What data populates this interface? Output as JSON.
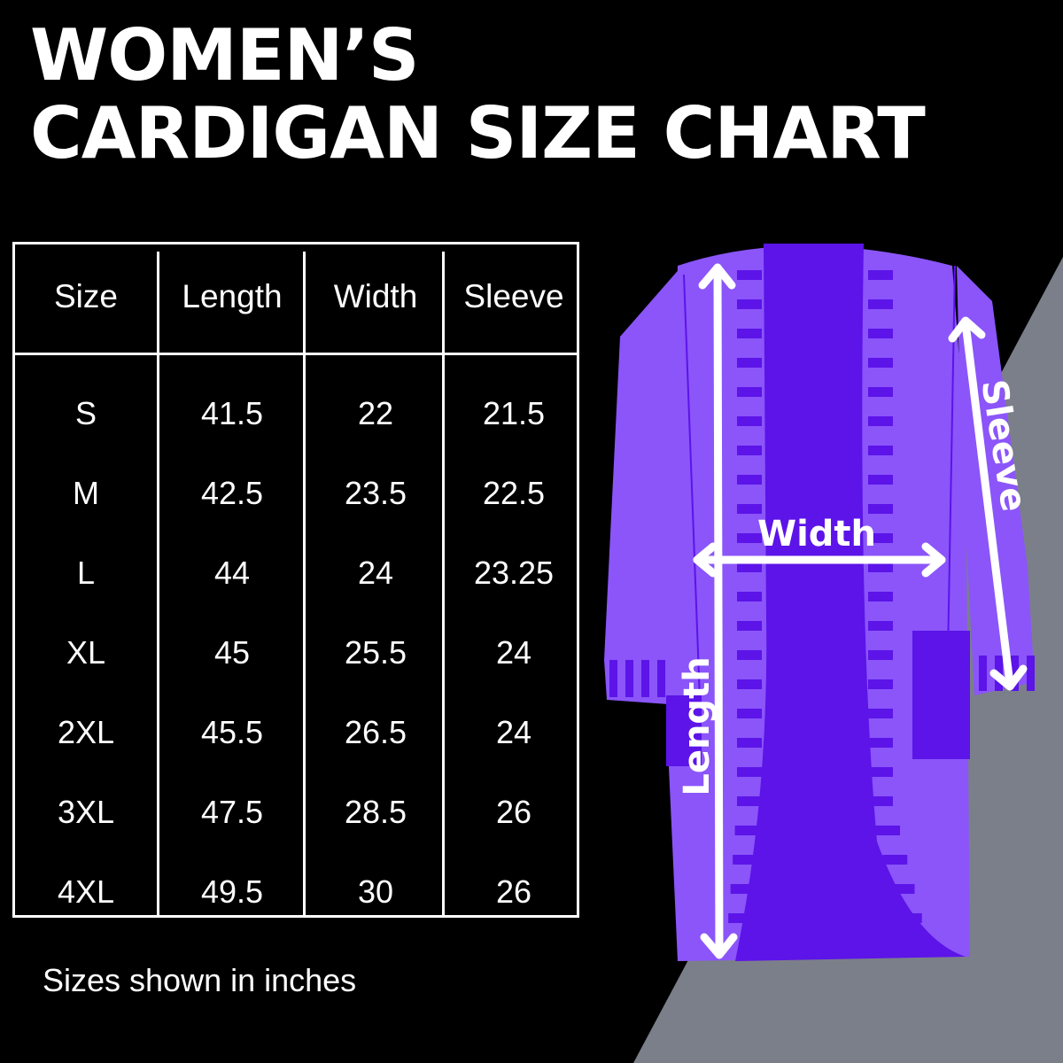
{
  "title": {
    "line1": "WOMEN’S",
    "line2": "CARDIGAN SIZE CHART"
  },
  "colors": {
    "background": "#000000",
    "accent_gray": "#7b7f8a",
    "cardigan_light": "#8b55fa",
    "cardigan_dark": "#5c14e8",
    "text": "#ffffff"
  },
  "chart_data": {
    "type": "table",
    "columns": [
      "Size",
      "Length",
      "Width",
      "Sleeve"
    ],
    "rows": [
      [
        "S",
        "41.5",
        "22",
        "21.5"
      ],
      [
        "M",
        "42.5",
        "23.5",
        "22.5"
      ],
      [
        "L",
        "44",
        "24",
        "23.25"
      ],
      [
        "XL",
        "45",
        "25.5",
        "24"
      ],
      [
        "2XL",
        "45.5",
        "26.5",
        "24"
      ],
      [
        "3XL",
        "47.5",
        "28.5",
        "26"
      ],
      [
        "4XL",
        "49.5",
        "30",
        "26"
      ]
    ]
  },
  "note": "Sizes shown in inches",
  "diagram": {
    "length_label": "Length",
    "width_label": "Width",
    "sleeve_label": "Sleeve"
  }
}
